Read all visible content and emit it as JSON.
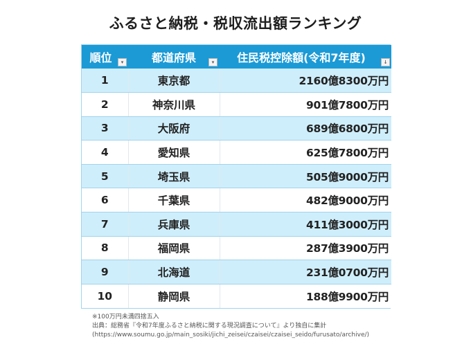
{
  "title": "ふるさと納税・税収流出額ランキング",
  "table": {
    "headers": {
      "rank": "順位",
      "prefecture": "都道府県",
      "amount": "住民税控除額(令和7年度)"
    },
    "filter_icons": {
      "rank": "▾",
      "prefecture": "▾",
      "amount": "↓"
    },
    "rows": [
      {
        "rank": "1",
        "prefecture": "東京都",
        "amount": "2160億8300万円"
      },
      {
        "rank": "2",
        "prefecture": "神奈川県",
        "amount": "901億7800万円"
      },
      {
        "rank": "3",
        "prefecture": "大阪府",
        "amount": "689億6800万円"
      },
      {
        "rank": "4",
        "prefecture": "愛知県",
        "amount": "625億7800万円"
      },
      {
        "rank": "5",
        "prefecture": "埼玉県",
        "amount": "505億9000万円"
      },
      {
        "rank": "6",
        "prefecture": "千葉県",
        "amount": "482億9000万円"
      },
      {
        "rank": "7",
        "prefecture": "兵庫県",
        "amount": "411億3000万円"
      },
      {
        "rank": "8",
        "prefecture": "福岡県",
        "amount": "287億3900万円"
      },
      {
        "rank": "9",
        "prefecture": "北海道",
        "amount": "231億0700万円"
      },
      {
        "rank": "10",
        "prefecture": "静岡県",
        "amount": "188億9900万円"
      }
    ]
  },
  "notes": {
    "rounding": "※100万円未満四捨五入",
    "source": "出典：総務省『令和7年度ふるさと納税に関する現況調査について』より独自に集計",
    "url": "(https://www.soumu.go.jp/main_sosiki/jichi_zeisei/czaisei/czaisei_seido/furusato/archive/)"
  },
  "colors": {
    "header_bg": "#1b9ad6",
    "header_text": "#ffffff",
    "row_highlight": "#cfeefb",
    "row_plain": "#ffffff",
    "border": "#9fd3ee"
  }
}
